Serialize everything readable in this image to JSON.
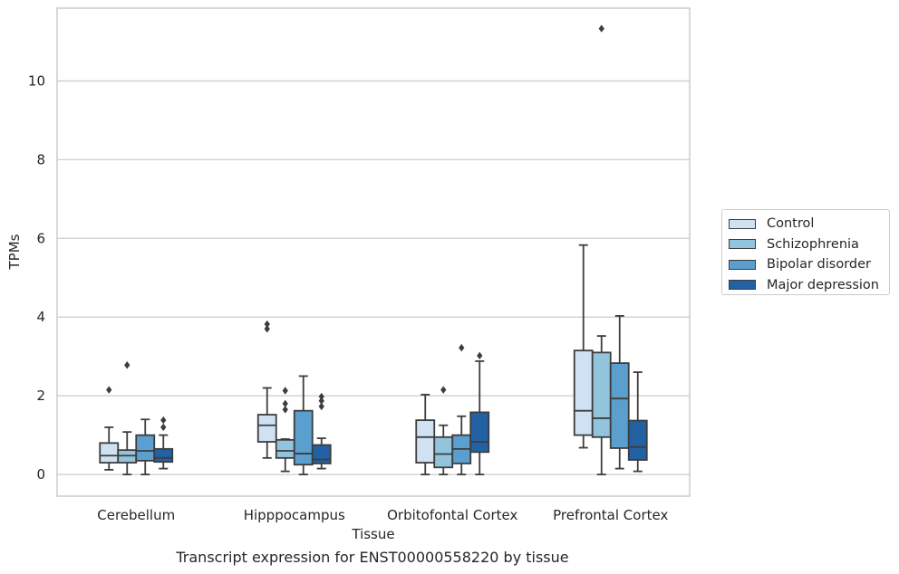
{
  "caption": "Transcript expression for ENST00000558220 by tissue",
  "chart_data": {
    "type": "box",
    "xlabel": "Tissue",
    "ylabel": "TPMs",
    "ylim": [
      -0.55,
      11.85
    ],
    "yticks": [
      0,
      2,
      4,
      6,
      8,
      10
    ],
    "grid": true,
    "legend_position": "right",
    "categories": [
      "Cerebellum",
      "Hipppocampus",
      "Orbitofontal Cortex",
      "Prefrontal Cortex"
    ],
    "series": [
      {
        "name": "Control",
        "color": "#cfe1f2",
        "boxes": [
          {
            "whisker_low": 0.12,
            "q1": 0.3,
            "median": 0.48,
            "q3": 0.8,
            "whisker_high": 1.2,
            "outliers": [
              2.15
            ]
          },
          {
            "whisker_low": 0.42,
            "q1": 0.83,
            "median": 1.25,
            "q3": 1.52,
            "whisker_high": 2.2,
            "outliers": [
              3.7,
              3.82
            ]
          },
          {
            "whisker_low": 0.0,
            "q1": 0.3,
            "median": 0.95,
            "q3": 1.38,
            "whisker_high": 2.03,
            "outliers": []
          },
          {
            "whisker_low": 0.68,
            "q1": 1.0,
            "median": 1.62,
            "q3": 3.15,
            "whisker_high": 5.83,
            "outliers": []
          }
        ]
      },
      {
        "name": "Schizophrenia",
        "color": "#93c4de",
        "boxes": [
          {
            "whisker_low": 0.0,
            "q1": 0.3,
            "median": 0.48,
            "q3": 0.62,
            "whisker_high": 1.08,
            "outliers": [
              2.78
            ]
          },
          {
            "whisker_low": 0.08,
            "q1": 0.42,
            "median": 0.6,
            "q3": 0.88,
            "whisker_high": 0.9,
            "outliers": [
              1.65,
              1.8,
              2.13
            ]
          },
          {
            "whisker_low": 0.0,
            "q1": 0.18,
            "median": 0.52,
            "q3": 0.95,
            "whisker_high": 1.25,
            "outliers": [
              2.15
            ]
          },
          {
            "whisker_low": 0.0,
            "q1": 0.95,
            "median": 1.43,
            "q3": 3.1,
            "whisker_high": 3.52,
            "outliers": [
              11.33
            ]
          }
        ]
      },
      {
        "name": "Bipolar disorder",
        "color": "#5a9fcd",
        "boxes": [
          {
            "whisker_low": 0.0,
            "q1": 0.35,
            "median": 0.6,
            "q3": 1.0,
            "whisker_high": 1.4,
            "outliers": []
          },
          {
            "whisker_low": 0.0,
            "q1": 0.25,
            "median": 0.53,
            "q3": 1.62,
            "whisker_high": 2.5,
            "outliers": []
          },
          {
            "whisker_low": 0.0,
            "q1": 0.28,
            "median": 0.65,
            "q3": 1.0,
            "whisker_high": 1.48,
            "outliers": [
              3.22
            ]
          },
          {
            "whisker_low": 0.15,
            "q1": 0.67,
            "median": 1.93,
            "q3": 2.83,
            "whisker_high": 4.03,
            "outliers": []
          }
        ]
      },
      {
        "name": "Major depression",
        "color": "#2262a4",
        "boxes": [
          {
            "whisker_low": 0.15,
            "q1": 0.32,
            "median": 0.42,
            "q3": 0.65,
            "whisker_high": 1.0,
            "outliers": [
              1.2,
              1.38
            ]
          },
          {
            "whisker_low": 0.15,
            "q1": 0.28,
            "median": 0.38,
            "q3": 0.75,
            "whisker_high": 0.92,
            "outliers": [
              1.73,
              1.87,
              1.98
            ]
          },
          {
            "whisker_low": 0.0,
            "q1": 0.57,
            "median": 0.83,
            "q3": 1.58,
            "whisker_high": 2.88,
            "outliers": [
              3.02
            ]
          },
          {
            "whisker_low": 0.08,
            "q1": 0.37,
            "median": 0.7,
            "q3": 1.37,
            "whisker_high": 2.6,
            "outliers": []
          }
        ]
      }
    ]
  }
}
